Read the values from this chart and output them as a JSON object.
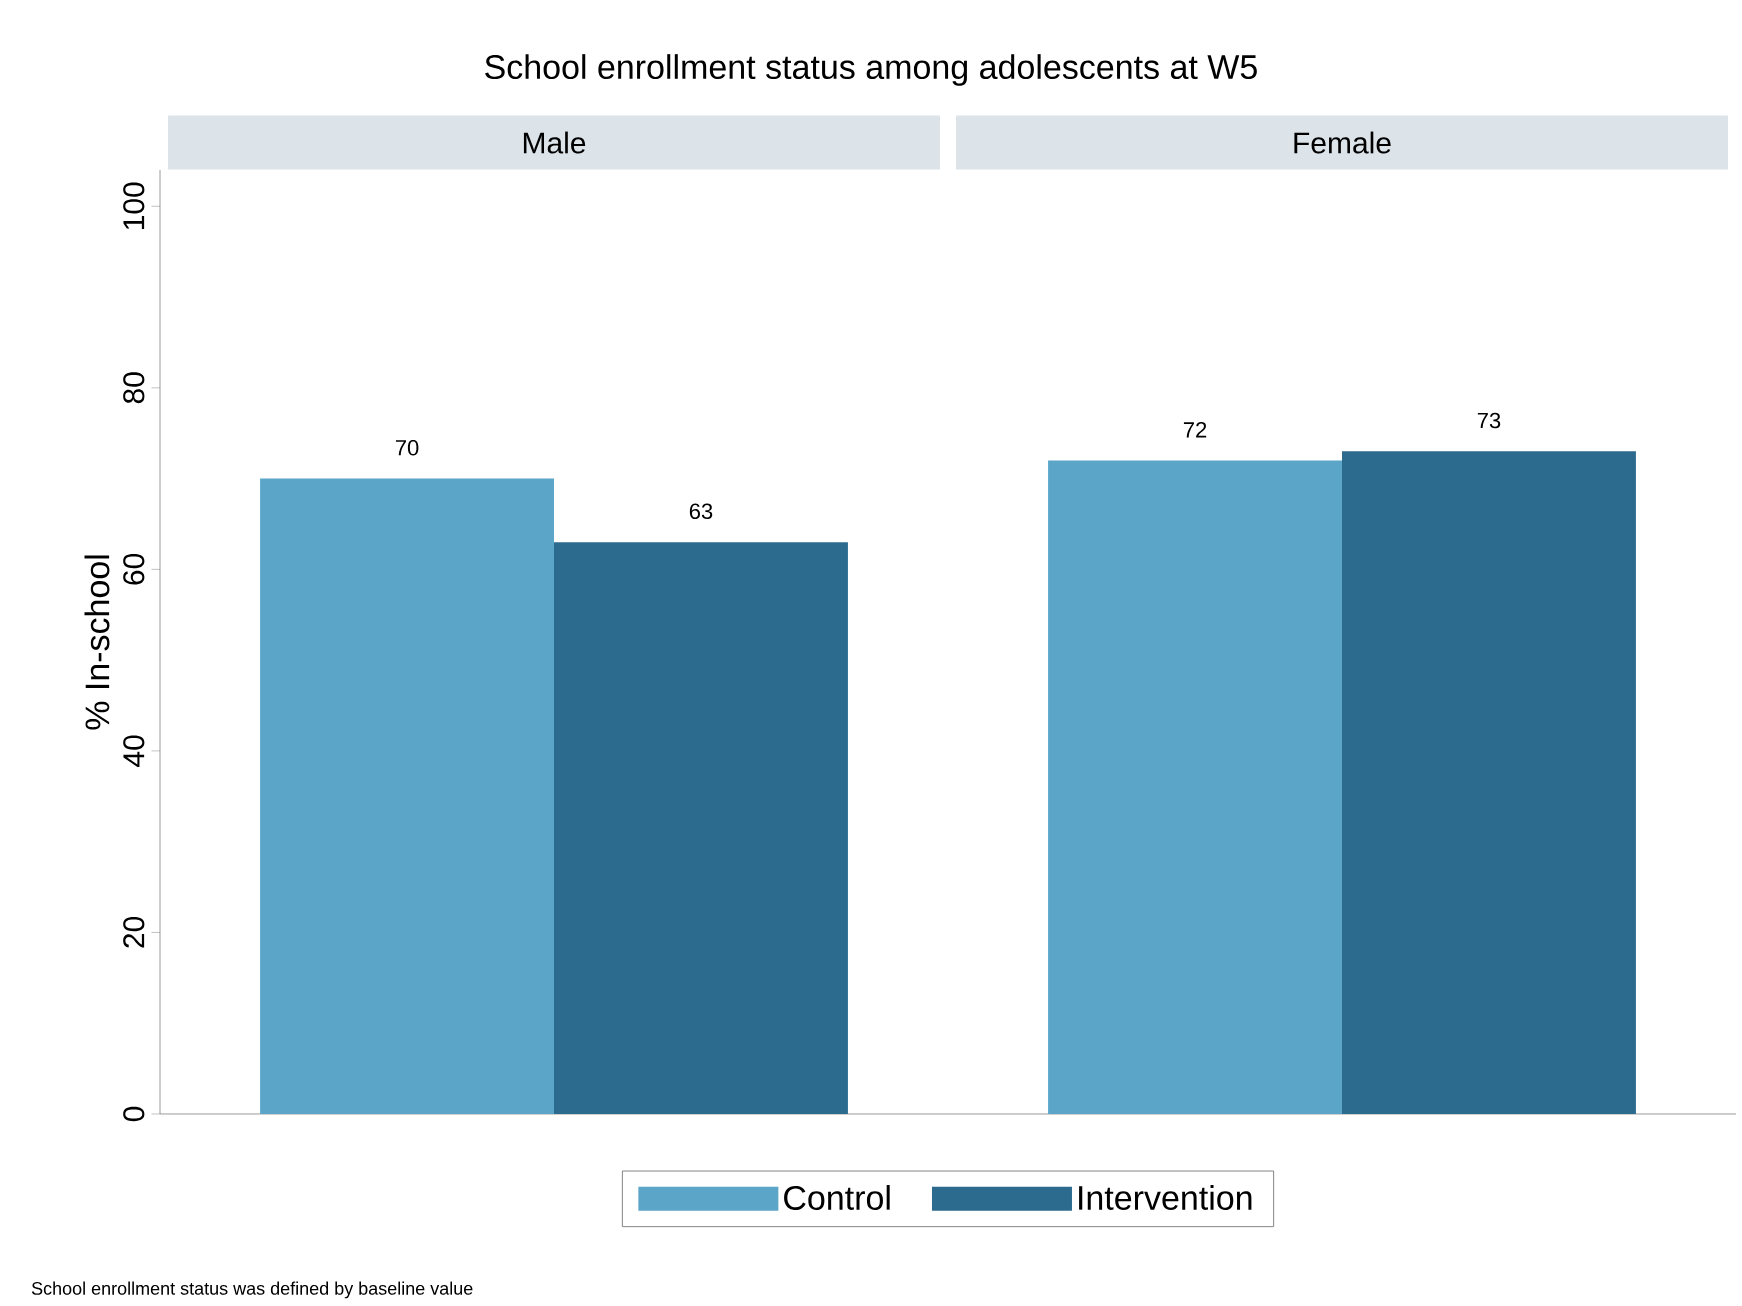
{
  "chart_data": {
    "type": "bar",
    "title": "School enrollment status among adolescents at W5",
    "ylabel": "% In-school",
    "categories": [
      "Male",
      "Female"
    ],
    "series": [
      {
        "name": "Control",
        "color": "#5aa5c8",
        "values": [
          70,
          72
        ]
      },
      {
        "name": "Intervention",
        "color": "#2c6a8e",
        "values": [
          63,
          73
        ]
      }
    ],
    "ylim": [
      0,
      104
    ],
    "yticks": [
      0,
      20,
      40,
      60,
      80,
      100
    ],
    "data_labels": true,
    "grid": false,
    "legend": "bottom",
    "annotations": [
      "School enrollment status was defined by baseline value"
    ]
  }
}
